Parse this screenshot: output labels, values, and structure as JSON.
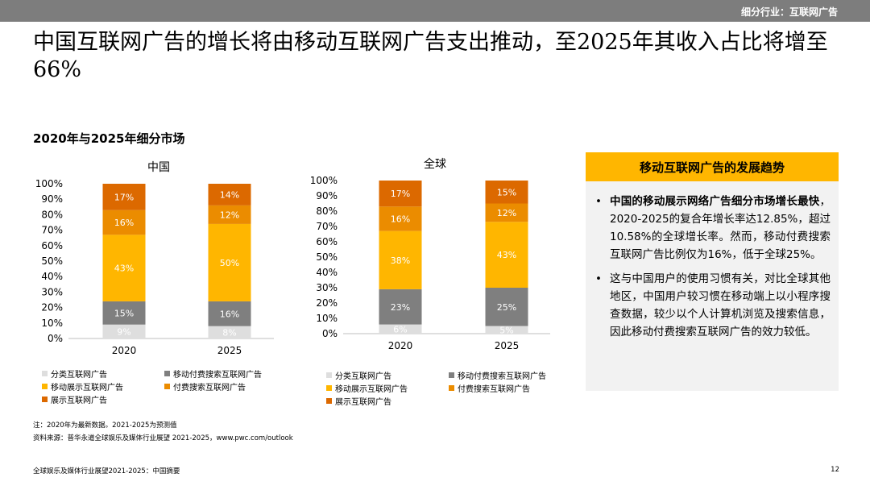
{
  "header": {
    "section_label": "细分行业：互联网广告"
  },
  "headline": "中国互联网广告的增长将由移动互联网广告支出推动，至2025年其收入占比将增至66%",
  "subtitle": "2020年与2025年细分市场",
  "colors": {
    "分类互联网广告": "#dedede",
    "移动付费搜索互联网广告": "#7f7f7f",
    "移动展示互联网广告": "#ffb600",
    "付费搜索互联网广告": "#eb8c00",
    "展示互联网广告": "#dc6900"
  },
  "chart_data": [
    {
      "type": "bar",
      "stacked": true,
      "title": "中国",
      "categories": [
        "2020",
        "2025"
      ],
      "ylim": [
        0,
        100
      ],
      "y_ticks": [
        "0%",
        "10%",
        "20%",
        "30%",
        "40%",
        "50%",
        "60%",
        "70%",
        "80%",
        "90%",
        "100%"
      ],
      "series": [
        {
          "name": "分类互联网广告",
          "values": [
            9,
            8
          ],
          "labels": [
            "9%",
            "8%"
          ]
        },
        {
          "name": "移动付费搜索互联网广告",
          "values": [
            15,
            16
          ],
          "labels": [
            "15%",
            "16%"
          ]
        },
        {
          "name": "移动展示互联网广告",
          "values": [
            43,
            50
          ],
          "labels": [
            "43%",
            "50%"
          ]
        },
        {
          "name": "付费搜索互联网广告",
          "values": [
            16,
            12
          ],
          "labels": [
            "16%",
            "12%"
          ]
        },
        {
          "name": "展示互联网广告",
          "values": [
            17,
            14
          ],
          "labels": [
            "17%",
            "14%"
          ]
        }
      ],
      "legend_position": "bottom"
    },
    {
      "type": "bar",
      "stacked": true,
      "title": "全球",
      "categories": [
        "2020",
        "2025"
      ],
      "ylim": [
        0,
        100
      ],
      "y_ticks": [
        "0%",
        "10%",
        "20%",
        "30%",
        "40%",
        "50%",
        "60%",
        "70%",
        "80%",
        "90%",
        "100%"
      ],
      "series": [
        {
          "name": "分类互联网广告",
          "values": [
            6,
            5
          ],
          "labels": [
            "6%",
            "5%"
          ]
        },
        {
          "name": "移动付费搜索互联网广告",
          "values": [
            23,
            25
          ],
          "labels": [
            "23%",
            "25%"
          ]
        },
        {
          "name": "移动展示互联网广告",
          "values": [
            38,
            43
          ],
          "labels": [
            "38%",
            "43%"
          ]
        },
        {
          "name": "付费搜索互联网广告",
          "values": [
            16,
            12
          ],
          "labels": [
            "16%",
            "12%"
          ]
        },
        {
          "name": "展示互联网广告",
          "values": [
            17,
            15
          ],
          "labels": [
            "17%",
            "15%"
          ]
        }
      ],
      "legend_position": "bottom"
    }
  ],
  "panel": {
    "title": "移动互联网广告的发展趋势",
    "bullet_char": "•",
    "bullets": [
      {
        "bold": "中国的移动展示网络广告细分市场增长最快",
        "text": "，2020-2025的复合年增长率达12.85%，超过10.58%的全球增长率。然而，移动付费搜索互联网广告比例仅为16%，低于全球25%。"
      },
      {
        "bold": "",
        "text": "这与中国用户的使用习惯有关，对比全球其他地区，中国用户较习惯在移动端上以小程序搜查数据，较少以个人计算机浏览及搜索信息，因此移动付费搜索互联网广告的效力较低。"
      }
    ]
  },
  "notes": {
    "note": "注：2020年为最新数据。2021-2025为预测值",
    "source": "资料来源：普华永道全球娱乐及媒体行业展望 2021-2025，www.pwc.com/outlook"
  },
  "footer": {
    "left": "全球娱乐及媒体行业展望2021-2025：中国摘要",
    "page": "12"
  }
}
